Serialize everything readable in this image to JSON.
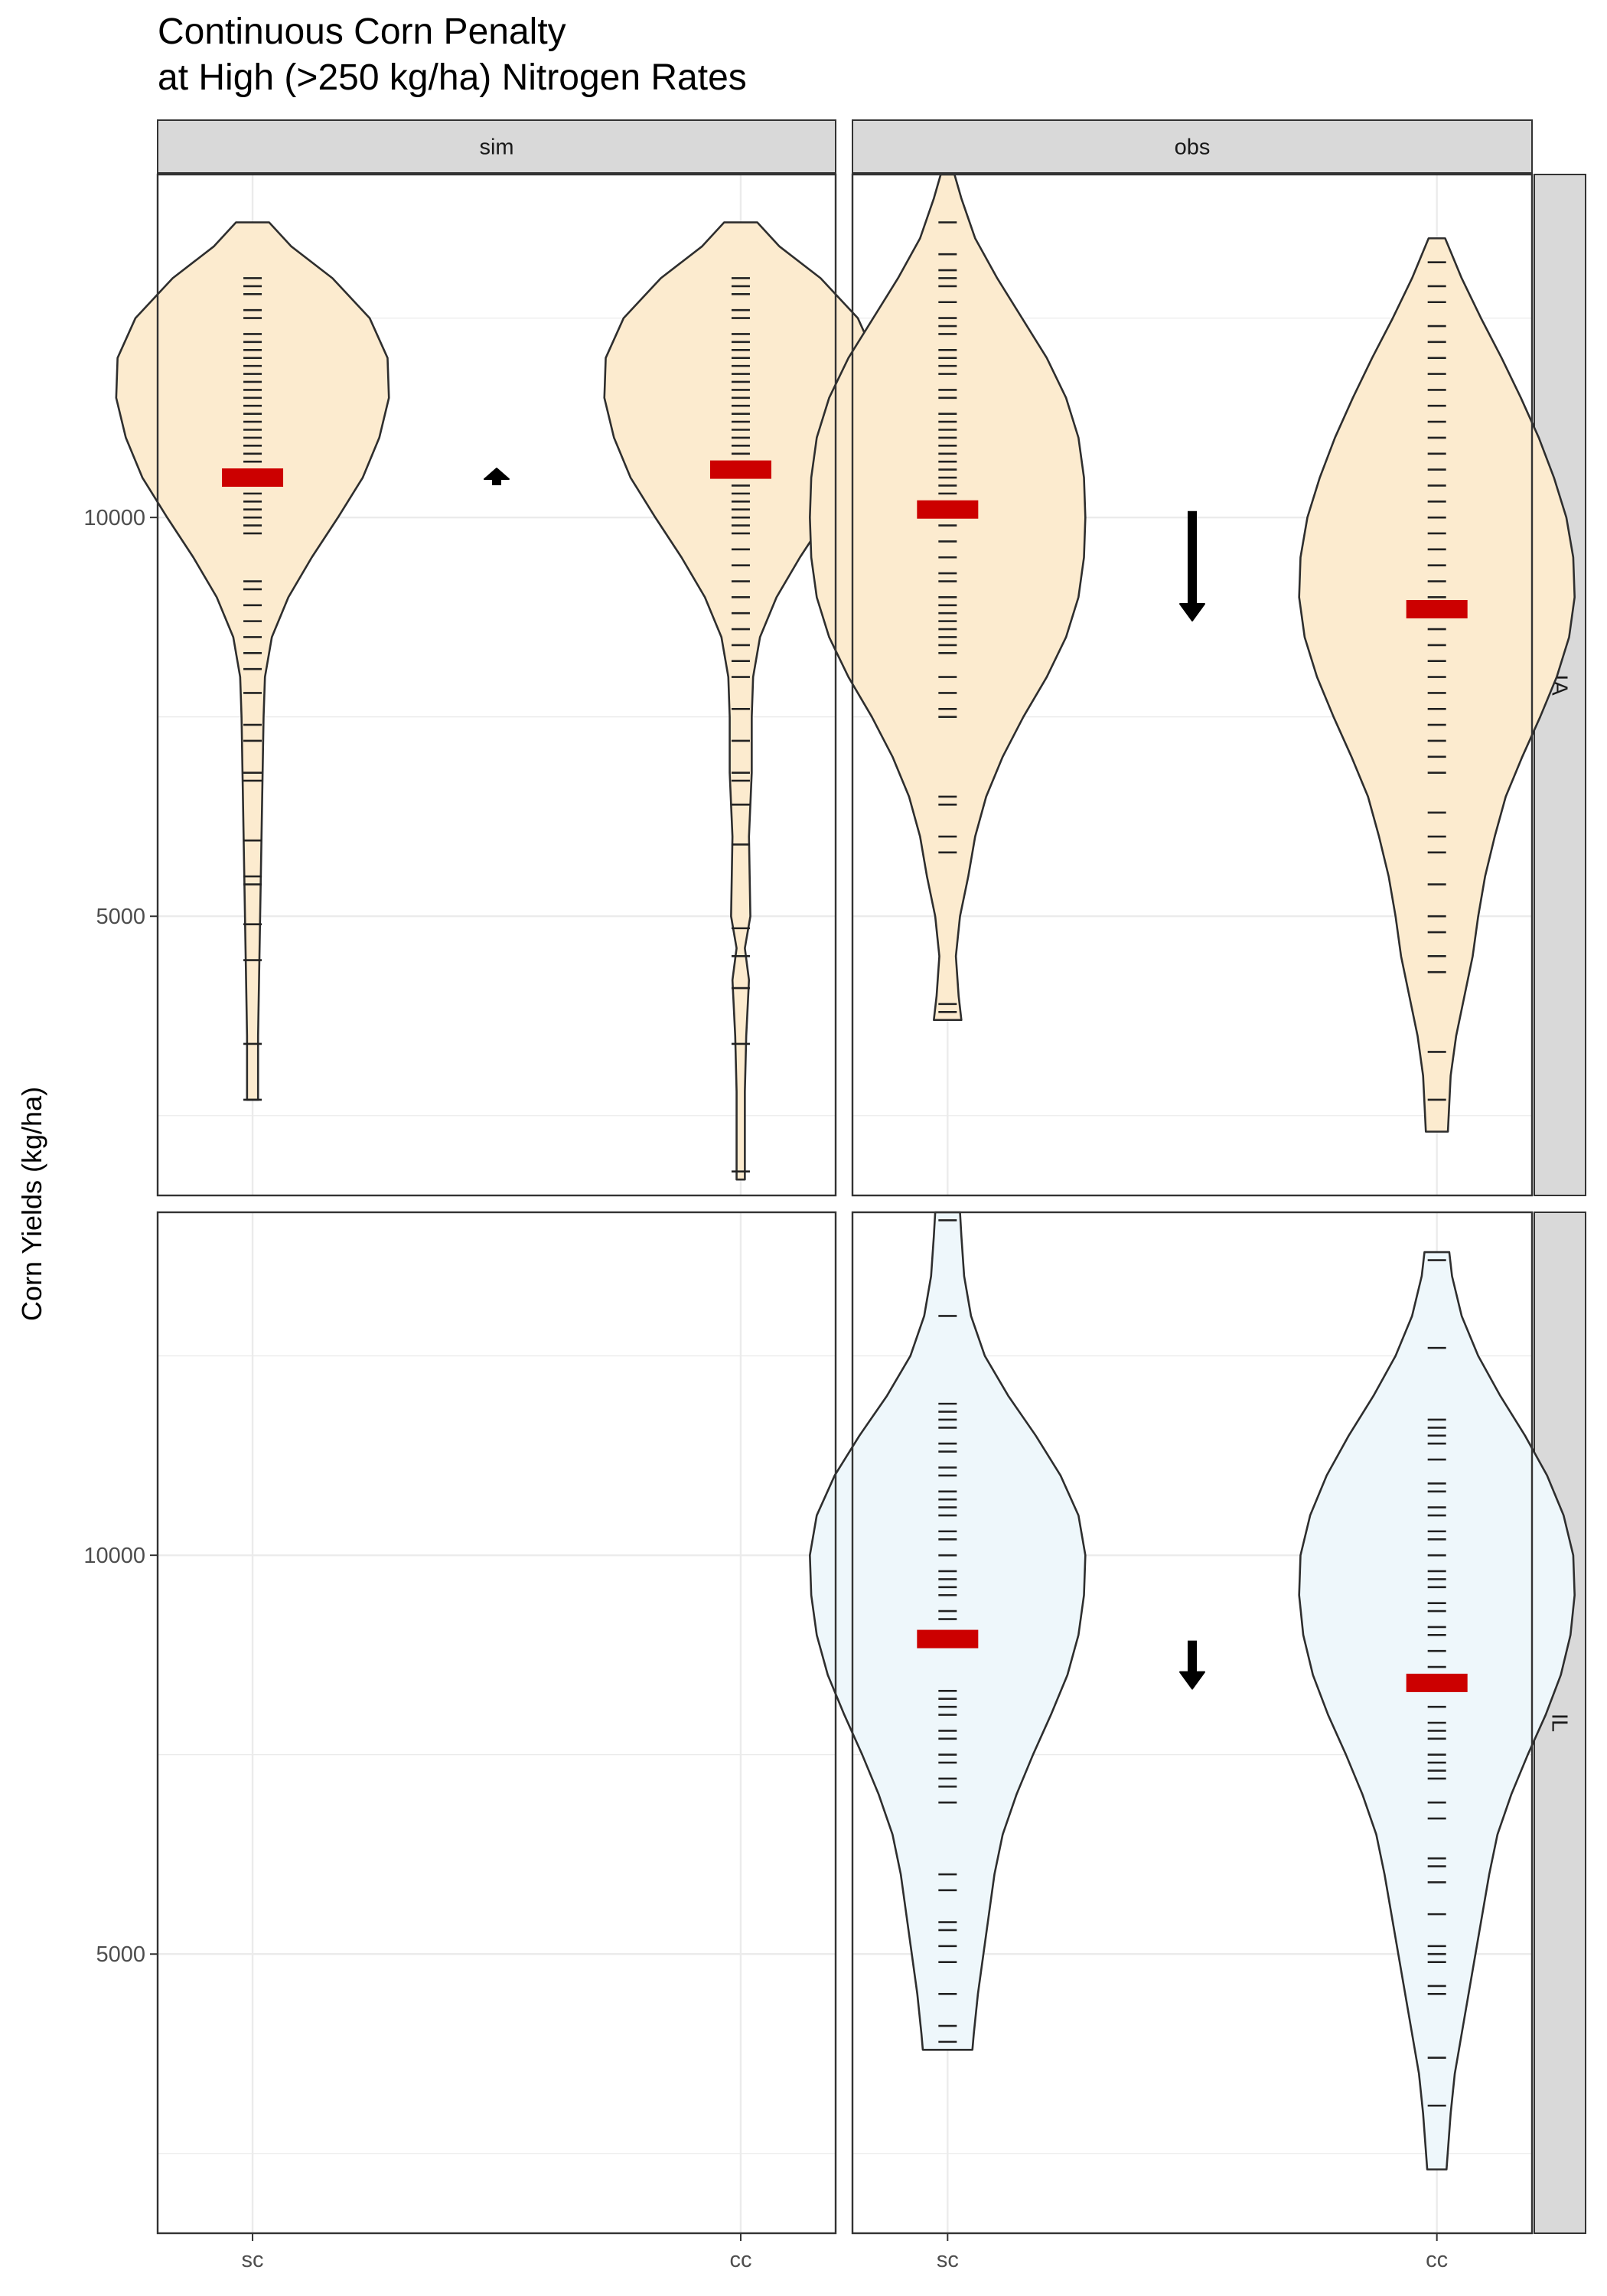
{
  "title": {
    "line1": "Continuous Corn Penalty",
    "line2": "at High (>250 kg/ha) Nitrogen Rates"
  },
  "colors": {
    "IA_fill": "#FCEBCF",
    "IL_fill": "#EEF7FB",
    "violin_stroke": "#2e2e2e",
    "mean_bar": "#CC0000",
    "arrow": "#000000",
    "strip_bg": "#D9D9D9",
    "grid": "#EBEBEB"
  },
  "chart_data": {
    "type": "violin",
    "ylabel": "Corn Yields (kg/ha)",
    "xlabel": "",
    "columns": [
      "sim",
      "obs"
    ],
    "rows": [
      "IA",
      "IL"
    ],
    "categories": [
      "sc",
      "cc"
    ],
    "ylim": [
      1500,
      14300
    ],
    "yticks": [
      5000,
      10000
    ],
    "grid": true,
    "panels": [
      {
        "column": "sim",
        "row": "IA",
        "arrow": "up",
        "violins": [
          {
            "category": "sc",
            "mean": 10500,
            "profile": [
              [
                2700,
                0.04
              ],
              [
                3500,
                0.04
              ],
              [
                4500,
                0.05
              ],
              [
                5500,
                0.06
              ],
              [
                6500,
                0.07
              ],
              [
                7500,
                0.08
              ],
              [
                8000,
                0.09
              ],
              [
                8500,
                0.14
              ],
              [
                9000,
                0.26
              ],
              [
                9500,
                0.43
              ],
              [
                10000,
                0.62
              ],
              [
                10500,
                0.8
              ],
              [
                11000,
                0.92
              ],
              [
                11500,
                0.99
              ],
              [
                12000,
                0.98
              ],
              [
                12500,
                0.85
              ],
              [
                13000,
                0.58
              ],
              [
                13400,
                0.28
              ],
              [
                13700,
                0.12
              ]
            ],
            "points": [
              2700,
              3400,
              4450,
              4900,
              5400,
              5500,
              5950,
              6700,
              6800,
              7200,
              7400,
              7800,
              8100,
              8300,
              8500,
              8700,
              8900,
              9100,
              9200,
              9800,
              9900,
              10000,
              10100,
              10200,
              10300,
              10400,
              10500,
              10600,
              10700,
              10800,
              10900,
              11000,
              11100,
              11200,
              11300,
              11400,
              11500,
              11600,
              11700,
              11800,
              11900,
              12000,
              12100,
              12200,
              12300,
              12500,
              12600,
              12800,
              12900,
              13000
            ]
          },
          {
            "category": "cc",
            "mean": 10600,
            "profile": [
              [
                1700,
                0.03
              ],
              [
                2800,
                0.03
              ],
              [
                3500,
                0.04
              ],
              [
                4200,
                0.06
              ],
              [
                4600,
                0.03
              ],
              [
                5000,
                0.07
              ],
              [
                6000,
                0.06
              ],
              [
                6800,
                0.08
              ],
              [
                7500,
                0.08
              ],
              [
                8000,
                0.09
              ],
              [
                8500,
                0.14
              ],
              [
                9000,
                0.26
              ],
              [
                9500,
                0.43
              ],
              [
                10000,
                0.62
              ],
              [
                10500,
                0.8
              ],
              [
                11000,
                0.92
              ],
              [
                11500,
                0.99
              ],
              [
                12000,
                0.98
              ],
              [
                12500,
                0.85
              ],
              [
                13000,
                0.58
              ],
              [
                13400,
                0.28
              ],
              [
                13700,
                0.12
              ]
            ],
            "points": [
              1800,
              3400,
              4100,
              4500,
              4850,
              5900,
              6400,
              6700,
              6800,
              7200,
              7600,
              8000,
              8200,
              8400,
              8600,
              8800,
              9000,
              9200,
              9400,
              9600,
              9800,
              9900,
              10000,
              10100,
              10200,
              10300,
              10400,
              10500,
              10600,
              10700,
              10800,
              10900,
              11000,
              11100,
              11200,
              11300,
              11400,
              11500,
              11600,
              11700,
              11800,
              11900,
              12000,
              12100,
              12200,
              12300,
              12500,
              12600,
              12800,
              12900,
              13000
            ]
          }
        ]
      },
      {
        "column": "obs",
        "row": "IA",
        "arrow": "down",
        "violins": [
          {
            "category": "sc",
            "mean": 10100,
            "profile": [
              [
                3700,
                0.1
              ],
              [
                4000,
                0.08
              ],
              [
                4500,
                0.06
              ],
              [
                5000,
                0.09
              ],
              [
                5500,
                0.15
              ],
              [
                6000,
                0.2
              ],
              [
                6500,
                0.28
              ],
              [
                7000,
                0.4
              ],
              [
                7500,
                0.55
              ],
              [
                8000,
                0.72
              ],
              [
                8500,
                0.86
              ],
              [
                9000,
                0.95
              ],
              [
                9500,
                0.99
              ],
              [
                10000,
                1.0
              ],
              [
                10500,
                0.99
              ],
              [
                11000,
                0.95
              ],
              [
                11500,
                0.86
              ],
              [
                12000,
                0.72
              ],
              [
                12500,
                0.54
              ],
              [
                13000,
                0.36
              ],
              [
                13500,
                0.2
              ],
              [
                14000,
                0.1
              ],
              [
                14300,
                0.05
              ]
            ],
            "points": [
              3800,
              3900,
              5800,
              6000,
              6400,
              6500,
              7500,
              7600,
              7800,
              8000,
              8300,
              8400,
              8500,
              8600,
              8700,
              8800,
              8900,
              9000,
              9200,
              9300,
              9500,
              9700,
              9900,
              10000,
              10100,
              10200,
              10300,
              10400,
              10500,
              10600,
              10700,
              10800,
              10900,
              11000,
              11100,
              11200,
              11300,
              11500,
              11600,
              11800,
              11900,
              12000,
              12100,
              12300,
              12400,
              12500,
              12700,
              12900,
              13000,
              13100,
              13300,
              13700
            ]
          },
          {
            "category": "cc",
            "mean": 8850,
            "profile": [
              [
                2300,
                0.08
              ],
              [
                3000,
                0.1
              ],
              [
                3500,
                0.14
              ],
              [
                4000,
                0.2
              ],
              [
                4500,
                0.26
              ],
              [
                5000,
                0.3
              ],
              [
                5500,
                0.35
              ],
              [
                6000,
                0.42
              ],
              [
                6500,
                0.5
              ],
              [
                7000,
                0.62
              ],
              [
                7500,
                0.75
              ],
              [
                8000,
                0.87
              ],
              [
                8500,
                0.96
              ],
              [
                9000,
                1.0
              ],
              [
                9500,
                0.99
              ],
              [
                10000,
                0.94
              ],
              [
                10500,
                0.85
              ],
              [
                11000,
                0.74
              ],
              [
                11500,
                0.61
              ],
              [
                12000,
                0.47
              ],
              [
                12500,
                0.32
              ],
              [
                13000,
                0.18
              ],
              [
                13500,
                0.06
              ]
            ],
            "points": [
              2700,
              3300,
              4300,
              4500,
              4800,
              5000,
              5400,
              5800,
              6000,
              6300,
              6800,
              7000,
              7200,
              7400,
              7600,
              7800,
              8000,
              8200,
              8400,
              8600,
              8800,
              9000,
              9200,
              9400,
              9600,
              9800,
              10000,
              10200,
              10400,
              10600,
              10800,
              11000,
              11200,
              11400,
              11600,
              11800,
              12000,
              12200,
              12400,
              12700,
              12900,
              13200
            ]
          }
        ]
      },
      {
        "column": "sim",
        "row": "IL",
        "arrow": "",
        "violins": []
      },
      {
        "column": "obs",
        "row": "IL",
        "arrow": "down",
        "violins": [
          {
            "category": "sc",
            "mean": 8950,
            "profile": [
              [
                3800,
                0.18
              ],
              [
                4000,
                0.19
              ],
              [
                4500,
                0.22
              ],
              [
                5000,
                0.26
              ],
              [
                5500,
                0.3
              ],
              [
                6000,
                0.34
              ],
              [
                6500,
                0.4
              ],
              [
                7000,
                0.5
              ],
              [
                7500,
                0.62
              ],
              [
                8000,
                0.75
              ],
              [
                8500,
                0.87
              ],
              [
                9000,
                0.95
              ],
              [
                9500,
                0.99
              ],
              [
                10000,
                1.0
              ],
              [
                10500,
                0.95
              ],
              [
                11000,
                0.82
              ],
              [
                11500,
                0.64
              ],
              [
                12000,
                0.44
              ],
              [
                12500,
                0.27
              ],
              [
                13000,
                0.17
              ],
              [
                13500,
                0.12
              ],
              [
                14000,
                0.1
              ],
              [
                14300,
                0.09
              ]
            ],
            "points": [
              3900,
              4100,
              4500,
              4900,
              5100,
              5300,
              5400,
              5800,
              6000,
              6900,
              7100,
              7200,
              7400,
              7500,
              7700,
              7800,
              8000,
              8100,
              8200,
              8300,
              8900,
              9000,
              9200,
              9300,
              9500,
              9600,
              9700,
              9800,
              10000,
              10200,
              10300,
              10500,
              10600,
              10700,
              10800,
              11000,
              11100,
              11300,
              11400,
              11600,
              11700,
              11800,
              11900,
              13000,
              14200
            ]
          },
          {
            "category": "cc",
            "mean": 8400,
            "profile": [
              [
                2300,
                0.07
              ],
              [
                3000,
                0.1
              ],
              [
                3500,
                0.13
              ],
              [
                4000,
                0.18
              ],
              [
                4500,
                0.23
              ],
              [
                5000,
                0.28
              ],
              [
                5500,
                0.33
              ],
              [
                6000,
                0.38
              ],
              [
                6500,
                0.44
              ],
              [
                7000,
                0.54
              ],
              [
                7500,
                0.66
              ],
              [
                8000,
                0.79
              ],
              [
                8500,
                0.9
              ],
              [
                9000,
                0.97
              ],
              [
                9500,
                1.0
              ],
              [
                10000,
                0.99
              ],
              [
                10500,
                0.92
              ],
              [
                11000,
                0.8
              ],
              [
                11500,
                0.64
              ],
              [
                12000,
                0.46
              ],
              [
                12500,
                0.3
              ],
              [
                13000,
                0.18
              ],
              [
                13500,
                0.11
              ],
              [
                13800,
                0.09
              ]
            ],
            "points": [
              3100,
              3700,
              4500,
              4600,
              4900,
              5000,
              5100,
              5500,
              5900,
              6100,
              6200,
              6700,
              6900,
              7200,
              7300,
              7400,
              7500,
              7700,
              7800,
              7900,
              8100,
              8300,
              8400,
              8600,
              8800,
              9000,
              9100,
              9300,
              9400,
              9600,
              9700,
              9800,
              10000,
              10200,
              10300,
              10500,
              10600,
              10800,
              10900,
              11200,
              11400,
              11500,
              11600,
              11700,
              12600,
              13700
            ]
          }
        ]
      }
    ]
  }
}
